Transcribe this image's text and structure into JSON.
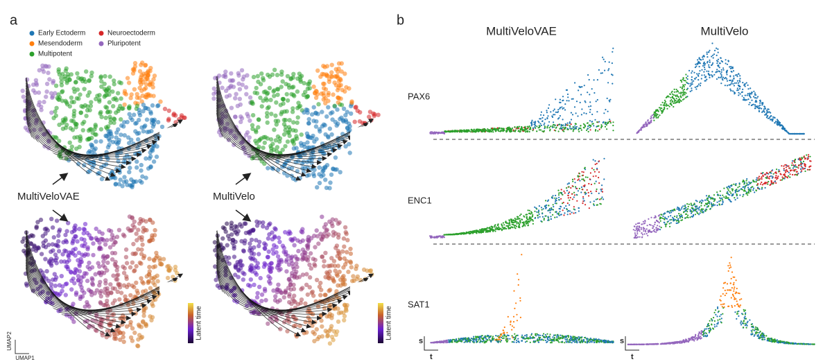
{
  "panel_a": {
    "label": "a",
    "legend": [
      {
        "name": "Early Ectoderm",
        "color": "#1f77b4"
      },
      {
        "name": "Mesendoderm",
        "color": "#ff7f0e"
      },
      {
        "name": "Multipotent",
        "color": "#2ca02c"
      },
      {
        "name": "Neuroectoderm",
        "color": "#d62728"
      },
      {
        "name": "Pluripotent",
        "color": "#9467bd"
      }
    ],
    "methods": [
      "MultiVeloVAE",
      "MultiVelo"
    ],
    "colorbar_label": "Latent time",
    "axes": {
      "y": "UMAP2",
      "x": "UMAP1"
    }
  },
  "panel_b": {
    "label": "b",
    "columns": [
      "MultiVeloVAE",
      "MultiVelo"
    ],
    "genes": [
      "PAX6",
      "ENC1",
      "SAT1"
    ],
    "axes": {
      "y": "s",
      "x": "t"
    }
  }
}
